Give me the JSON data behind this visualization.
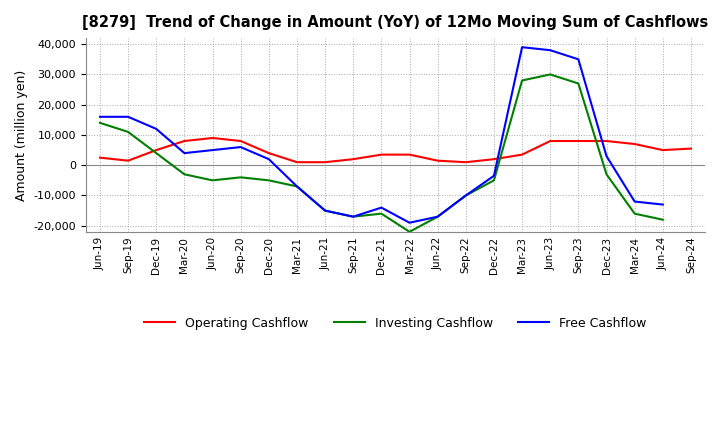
{
  "title": "[8279]  Trend of Change in Amount (YoY) of 12Mo Moving Sum of Cashflows",
  "ylabel": "Amount (million yen)",
  "ylim": [
    -22000,
    42000
  ],
  "yticks": [
    -20000,
    -10000,
    0,
    10000,
    20000,
    30000,
    40000
  ],
  "x_labels": [
    "Jun-19",
    "Sep-19",
    "Dec-19",
    "Mar-20",
    "Jun-20",
    "Sep-20",
    "Dec-20",
    "Mar-21",
    "Jun-21",
    "Sep-21",
    "Dec-21",
    "Mar-22",
    "Jun-22",
    "Sep-22",
    "Dec-22",
    "Mar-23",
    "Jun-23",
    "Sep-23",
    "Dec-23",
    "Mar-24",
    "Jun-24",
    "Sep-24"
  ],
  "operating": [
    2500,
    1500,
    5000,
    8000,
    9000,
    8000,
    4000,
    1000,
    1000,
    2000,
    3500,
    3500,
    1500,
    1000,
    2000,
    3500,
    8000,
    8000,
    8000,
    7000,
    5000,
    5500
  ],
  "investing": [
    14000,
    11000,
    4000,
    -3000,
    -5000,
    -4000,
    -5000,
    -7000,
    -15000,
    -17000,
    -16000,
    -22000,
    -17000,
    -10000,
    -5000,
    28000,
    30000,
    27000,
    -3000,
    -16000,
    -18000,
    null
  ],
  "free": [
    16000,
    16000,
    12000,
    4000,
    5000,
    6000,
    2000,
    -7000,
    -15000,
    -17000,
    -14000,
    -19000,
    -17000,
    -10000,
    -3500,
    39000,
    38000,
    35000,
    3000,
    -12000,
    -13000,
    null
  ],
  "line_colors": {
    "operating": "#FF0000",
    "investing": "#008000",
    "free": "#0000FF"
  },
  "legend_labels": {
    "operating": "Operating Cashflow",
    "investing": "Investing Cashflow",
    "free": "Free Cashflow"
  },
  "background_color": "#FFFFFF",
  "grid_color": "#AAAAAA",
  "grid_style": ":"
}
